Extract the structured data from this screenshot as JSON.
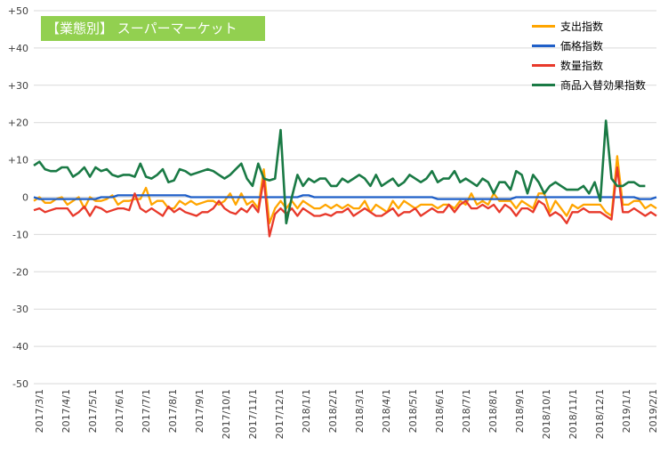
{
  "chart_data": {
    "type": "line",
    "title": "【業態別】 スーパーマーケット",
    "xlabel": "",
    "ylabel": "",
    "ylim": [
      -50,
      50
    ],
    "y_ticks": [
      "+50",
      "+40",
      "+30",
      "+20",
      "+10",
      "0",
      "-10",
      "-20",
      "-30",
      "-40",
      "-50"
    ],
    "x_tick_labels": [
      "2017/3/1",
      "2017/4/1",
      "2017/5/1",
      "2017/6/1",
      "2017/7/1",
      "2017/8/1",
      "2017/9/1",
      "2017/10/1",
      "2017/11/1",
      "2017/12/1",
      "2018/1/1",
      "2018/2/1",
      "2018/3/1",
      "2018/4/1",
      "2018/5/1",
      "2018/6/1",
      "2018/7/1",
      "2018/8/1",
      "2018/9/1",
      "2018/10/1",
      "2018/11/1",
      "2018/12/1",
      "2019/1/1",
      "2019/2/1"
    ],
    "grid": true,
    "legend_position": "top-right",
    "series": [
      {
        "name": "支出指数",
        "color": "#ffa500",
        "values": [
          -1,
          0,
          -1.5,
          -1.5,
          -0.5,
          0,
          -2,
          -1,
          0,
          -3,
          0,
          -1,
          -1,
          -0.5,
          0.5,
          -2,
          -1,
          -1,
          -0.5,
          -0.5,
          2.5,
          -2,
          -1,
          -1,
          -3,
          -3,
          -1,
          -2,
          -1,
          -2,
          -1.5,
          -1,
          -1,
          -2,
          -1,
          1,
          -2,
          1,
          -2,
          -1,
          -3,
          7.5,
          -7,
          -3,
          -1,
          -3,
          -1,
          -3,
          -1,
          -2,
          -3,
          -3,
          -2,
          -3,
          -2,
          -3,
          -2,
          -3,
          -3,
          -1,
          -4,
          -2,
          -3,
          -4,
          -1,
          -3,
          -1,
          -2,
          -3,
          -2,
          -2,
          -2,
          -3,
          -2,
          -2,
          -3,
          -1,
          -2,
          1,
          -2,
          -1,
          -2,
          1,
          -1,
          -1,
          -1,
          -3,
          -1,
          -2,
          -3,
          1,
          1,
          -4,
          -1,
          -3,
          -5,
          -2,
          -3,
          -2,
          -2,
          -2,
          -2,
          -4,
          -5,
          11,
          -2,
          -2,
          -1,
          -1,
          -3,
          -2,
          -3
        ]
      },
      {
        "name": "価格指数",
        "color": "#1f5fc8",
        "values": [
          0,
          -0.5,
          -0.5,
          -0.5,
          -0.5,
          -0.5,
          -0.5,
          -0.5,
          -0.5,
          -0.5,
          -0.5,
          -0.5,
          0,
          0,
          0,
          0.5,
          0.5,
          0.5,
          0.5,
          0.5,
          0.5,
          0.5,
          0.5,
          0.5,
          0.5,
          0.5,
          0.5,
          0.5,
          0,
          0,
          0,
          0,
          0,
          0,
          0,
          0,
          0,
          0,
          0,
          0,
          0,
          0,
          0,
          0,
          0,
          0,
          0,
          0,
          0.5,
          0.5,
          0,
          0,
          0,
          0,
          0,
          0,
          0,
          0,
          0,
          0,
          0,
          0,
          0,
          0,
          0,
          0,
          0,
          0,
          0,
          0,
          0,
          0,
          -0.5,
          -0.5,
          -0.5,
          -0.5,
          -0.5,
          -0.5,
          -0.5,
          -0.5,
          -0.5,
          -0.5,
          -0.5,
          -0.5,
          -0.5,
          -0.5,
          0,
          0,
          0,
          0,
          0,
          0,
          0,
          0,
          0,
          0,
          0,
          0,
          0,
          0,
          0,
          0,
          0,
          0,
          0,
          0,
          0,
          0,
          -0.5,
          -0.5,
          -0.5,
          0
        ]
      },
      {
        "name": "数量指数",
        "color": "#e8392b",
        "values": [
          -3.5,
          -3,
          -4,
          -3.5,
          -3,
          -3,
          -3,
          -5,
          -4,
          -2.5,
          -5,
          -2.5,
          -3,
          -4,
          -3.5,
          -3,
          -3,
          -3.5,
          1,
          -3,
          -4,
          -3,
          -4,
          -5,
          -2.5,
          -4,
          -3,
          -4,
          -4.5,
          -5,
          -4,
          -4,
          -3,
          -1,
          -3,
          -4,
          -4.5,
          -3,
          -4,
          -2,
          -4,
          5,
          -10.5,
          -4.5,
          -3,
          -4.5,
          -3,
          -5,
          -3,
          -4,
          -5,
          -5,
          -4.5,
          -5,
          -4,
          -4,
          -3,
          -5,
          -4,
          -3,
          -4,
          -5,
          -5,
          -4,
          -3,
          -5,
          -4,
          -4,
          -3,
          -5,
          -4,
          -3,
          -4,
          -4,
          -2,
          -4,
          -2,
          -1,
          -3,
          -3,
          -2,
          -3,
          -2,
          -4,
          -2,
          -3,
          -5,
          -3,
          -3,
          -4,
          -1,
          -2,
          -5,
          -4,
          -5,
          -7,
          -4,
          -4,
          -3,
          -4,
          -4,
          -4,
          -5,
          -6,
          8,
          -4,
          -4,
          -3,
          -4,
          -5,
          -4,
          -5
        ]
      },
      {
        "name": "商品入替効果指数",
        "color": "#1a7a45",
        "values": [
          8.5,
          9.5,
          7.5,
          7,
          7,
          8,
          8,
          5.5,
          6.5,
          8,
          5.5,
          8,
          7,
          7.5,
          6,
          5.5,
          6,
          6,
          5.5,
          9,
          5.5,
          5,
          6,
          7.5,
          4,
          4.5,
          7.5,
          7,
          6,
          6.5,
          7,
          7.5,
          7,
          6,
          5,
          6,
          7.5,
          9,
          5,
          3,
          9,
          5,
          4.5,
          5,
          18,
          -7,
          0,
          6,
          3,
          5,
          4,
          5,
          5,
          3,
          3,
          5,
          4,
          5,
          6,
          5,
          3,
          6,
          3,
          4,
          5,
          3,
          4,
          6,
          5,
          4,
          5,
          7,
          4,
          5,
          5,
          7,
          4,
          5,
          4,
          3,
          5,
          4,
          1,
          4,
          4,
          2,
          7,
          6,
          1,
          6,
          4,
          1,
          3,
          4,
          3,
          2,
          2,
          2,
          3,
          1,
          4,
          -1,
          20.5,
          5,
          3,
          3,
          4,
          4,
          3,
          3
        ]
      }
    ]
  }
}
